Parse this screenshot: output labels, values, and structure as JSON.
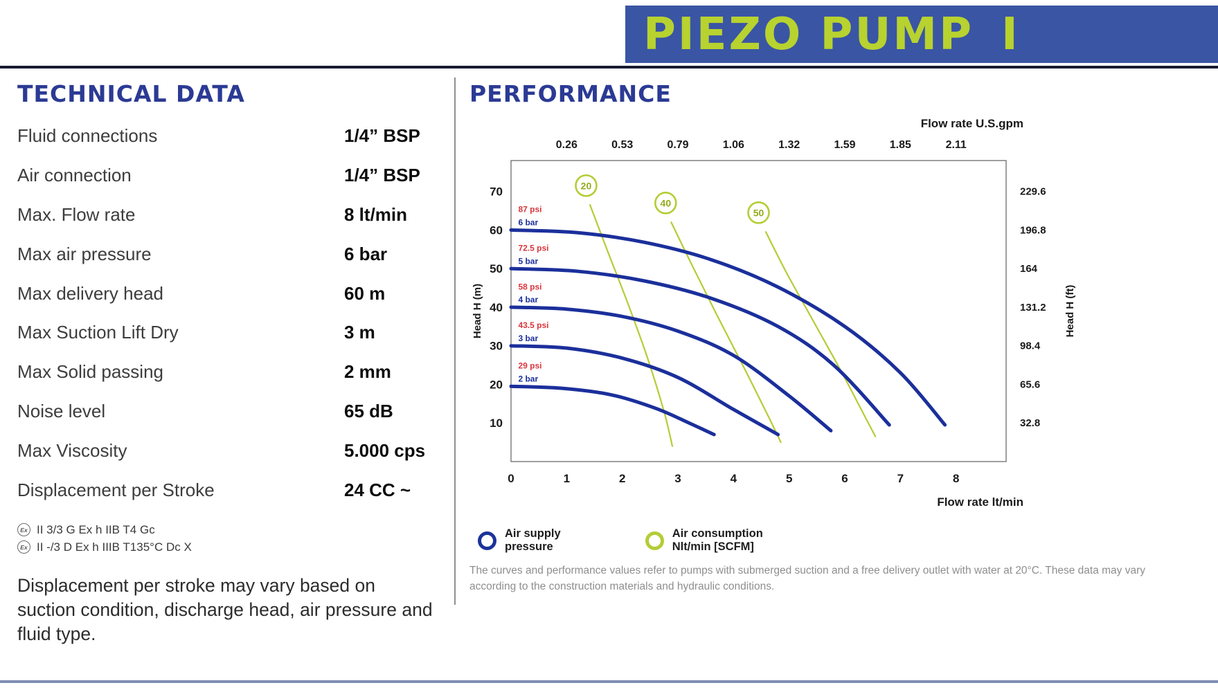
{
  "palette": {
    "banner_bg": "#3a55a4",
    "banner_fg": "#b8d22f",
    "heading_blue": "#2b3a94",
    "curve_blue": "#1b2f9b",
    "curve_green": "#b5cc35",
    "psi_red": "#d8363c",
    "tick_text": "#1a1a1a"
  },
  "header": {
    "title": "PIEZO PUMP",
    "model": "I"
  },
  "technical": {
    "heading": "TECHNICAL DATA",
    "specs": [
      {
        "label": "Fluid connections",
        "value": "1/4” BSP"
      },
      {
        "label": "Air connection",
        "value": "1/4” BSP"
      },
      {
        "label": "Max. Flow rate",
        "value": "8 lt/min"
      },
      {
        "label": "Max air pressure",
        "value": "6 bar"
      },
      {
        "label": "Max delivery head",
        "value": "60 m"
      },
      {
        "label": "Max Suction Lift Dry",
        "value": "3 m"
      },
      {
        "label": "Max Solid passing",
        "value": "2 mm"
      },
      {
        "label": "Noise level",
        "value": "65 dB"
      },
      {
        "label": "Max Viscosity",
        "value": "5.000 cps"
      },
      {
        "label": "Displacement per Stroke",
        "value": "24 CC ~"
      }
    ],
    "atex_symbol": "Ex",
    "atex": [
      "II 3/3 G Ex h IIB T4 Gc",
      "II -/3 D Ex h IIIB T135°C Dc X"
    ],
    "note": "Displacement per stroke may vary based on suction condition, discharge head, air pressure and fluid type."
  },
  "performance": {
    "heading": "PERFORMANCE",
    "legend": [
      {
        "color": "#1b3399",
        "line1": "Air supply",
        "line2": "pressure"
      },
      {
        "color": "#b5cc35",
        "line1": "Air consumption",
        "line2": "Nlt/min [SCFM]"
      }
    ],
    "footnote": "The curves and performance values refer to pumps with submerged suction and a free delivery outlet with water at 20°C. These data may vary according to the construction materials and hydraulic conditions."
  },
  "chart_data": {
    "type": "line",
    "x_axis_bottom": {
      "label": "Flow rate  lt/min",
      "ticks": [
        0,
        1,
        2,
        3,
        4,
        5,
        6,
        7,
        8
      ],
      "range": [
        0,
        8.9
      ]
    },
    "x_axis_top": {
      "label": "Flow rate U.S.gpm",
      "ticks": [
        "0.26",
        "0.53",
        "0.79",
        "1.06",
        "1.32",
        "1.59",
        "1.85",
        "2.11"
      ]
    },
    "y_axis_left": {
      "label": "Head H (m)",
      "ticks": [
        10,
        20,
        30,
        40,
        50,
        60,
        70
      ],
      "range": [
        0,
        78
      ]
    },
    "y_axis_right": {
      "label": "Head H (ft)",
      "ticks": [
        "229.6",
        "196.8",
        "164",
        "131.2",
        "98.4",
        "65.6",
        "32.8"
      ]
    },
    "grid": false,
    "pressure_curves": [
      {
        "psi": "87 psi",
        "bar": "6 bar",
        "points": [
          [
            0,
            60
          ],
          [
            1.2,
            59.3
          ],
          [
            2.4,
            56.8
          ],
          [
            3.6,
            52.3
          ],
          [
            4.8,
            45.2
          ],
          [
            6,
            35
          ],
          [
            7,
            23
          ],
          [
            7.8,
            9.5
          ]
        ]
      },
      {
        "psi": "72.5 psi",
        "bar": "5 bar",
        "points": [
          [
            0,
            50
          ],
          [
            1.2,
            49.3
          ],
          [
            2.4,
            46.8
          ],
          [
            3.6,
            42.3
          ],
          [
            4.8,
            35
          ],
          [
            5.8,
            25
          ],
          [
            6.8,
            9.5
          ]
        ]
      },
      {
        "psi": "58 psi",
        "bar": "4 bar",
        "points": [
          [
            0,
            40
          ],
          [
            1,
            39.5
          ],
          [
            2,
            37.6
          ],
          [
            3,
            33.8
          ],
          [
            4,
            27.5
          ],
          [
            5,
            17
          ],
          [
            5.75,
            8
          ]
        ]
      },
      {
        "psi": "43.5 psi",
        "bar": "3 bar",
        "points": [
          [
            0,
            30
          ],
          [
            1,
            29.4
          ],
          [
            2,
            26.8
          ],
          [
            3,
            21.8
          ],
          [
            4,
            13.5
          ],
          [
            4.8,
            7
          ]
        ]
      },
      {
        "psi": "29 psi",
        "bar": "2 bar",
        "points": [
          [
            0,
            19.5
          ],
          [
            0.9,
            19
          ],
          [
            1.8,
            17.3
          ],
          [
            2.6,
            13.8
          ],
          [
            3.2,
            10
          ],
          [
            3.65,
            7
          ]
        ]
      }
    ],
    "consumption_curves": [
      {
        "label": "20",
        "label_xy": [
          1.35,
          71.5
        ],
        "points": [
          [
            1.42,
            66.5
          ],
          [
            1.75,
            54
          ],
          [
            2.1,
            41
          ],
          [
            2.45,
            27
          ],
          [
            2.75,
            13
          ],
          [
            2.9,
            4
          ]
        ]
      },
      {
        "label": "40",
        "label_xy": [
          2.78,
          67.0
        ],
        "points": [
          [
            2.88,
            62
          ],
          [
            3.25,
            51
          ],
          [
            3.7,
            38
          ],
          [
            4.2,
            24
          ],
          [
            4.65,
            11
          ],
          [
            4.85,
            5
          ]
        ]
      },
      {
        "label": "50",
        "label_xy": [
          4.45,
          64.5
        ],
        "points": [
          [
            4.58,
            59.5
          ],
          [
            4.95,
            49
          ],
          [
            5.45,
            36
          ],
          [
            5.95,
            23
          ],
          [
            6.35,
            12
          ],
          [
            6.55,
            6.5
          ]
        ]
      }
    ]
  }
}
